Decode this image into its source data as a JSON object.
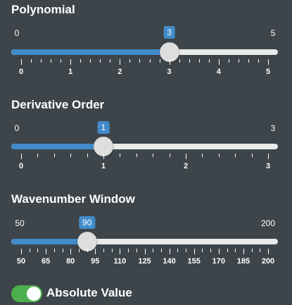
{
  "sliders": [
    {
      "id": "polynomial",
      "label": "Polynomial",
      "min": 0,
      "max": 5,
      "value": 3,
      "min_label": "0",
      "max_label": "5",
      "value_label": "3",
      "major_ticks": [
        "0",
        "1",
        "2",
        "3",
        "4",
        "5"
      ],
      "minor_per_major": 4
    },
    {
      "id": "derivative-order",
      "label": "Derivative Order",
      "min": 0,
      "max": 3,
      "value": 1,
      "min_label": "0",
      "max_label": "3",
      "value_label": "1",
      "major_ticks": [
        "0",
        "1",
        "2",
        "3"
      ],
      "minor_per_major": 4
    },
    {
      "id": "wavenumber-window",
      "label": "Wavenumber Window",
      "min": 50,
      "max": 200,
      "value": 90,
      "min_label": "50",
      "max_label": "200",
      "value_label": "90",
      "major_ticks": [
        "50",
        "65",
        "80",
        "95",
        "110",
        "125",
        "140",
        "155",
        "170",
        "185",
        "200"
      ],
      "minor_per_major": 2
    }
  ],
  "toggle": {
    "label": "Absolute Value",
    "on": true
  },
  "colors": {
    "background": "#3d454b",
    "accent": "#428bca",
    "track": "#eaeaea",
    "toggle_on": "#4cae4c"
  }
}
